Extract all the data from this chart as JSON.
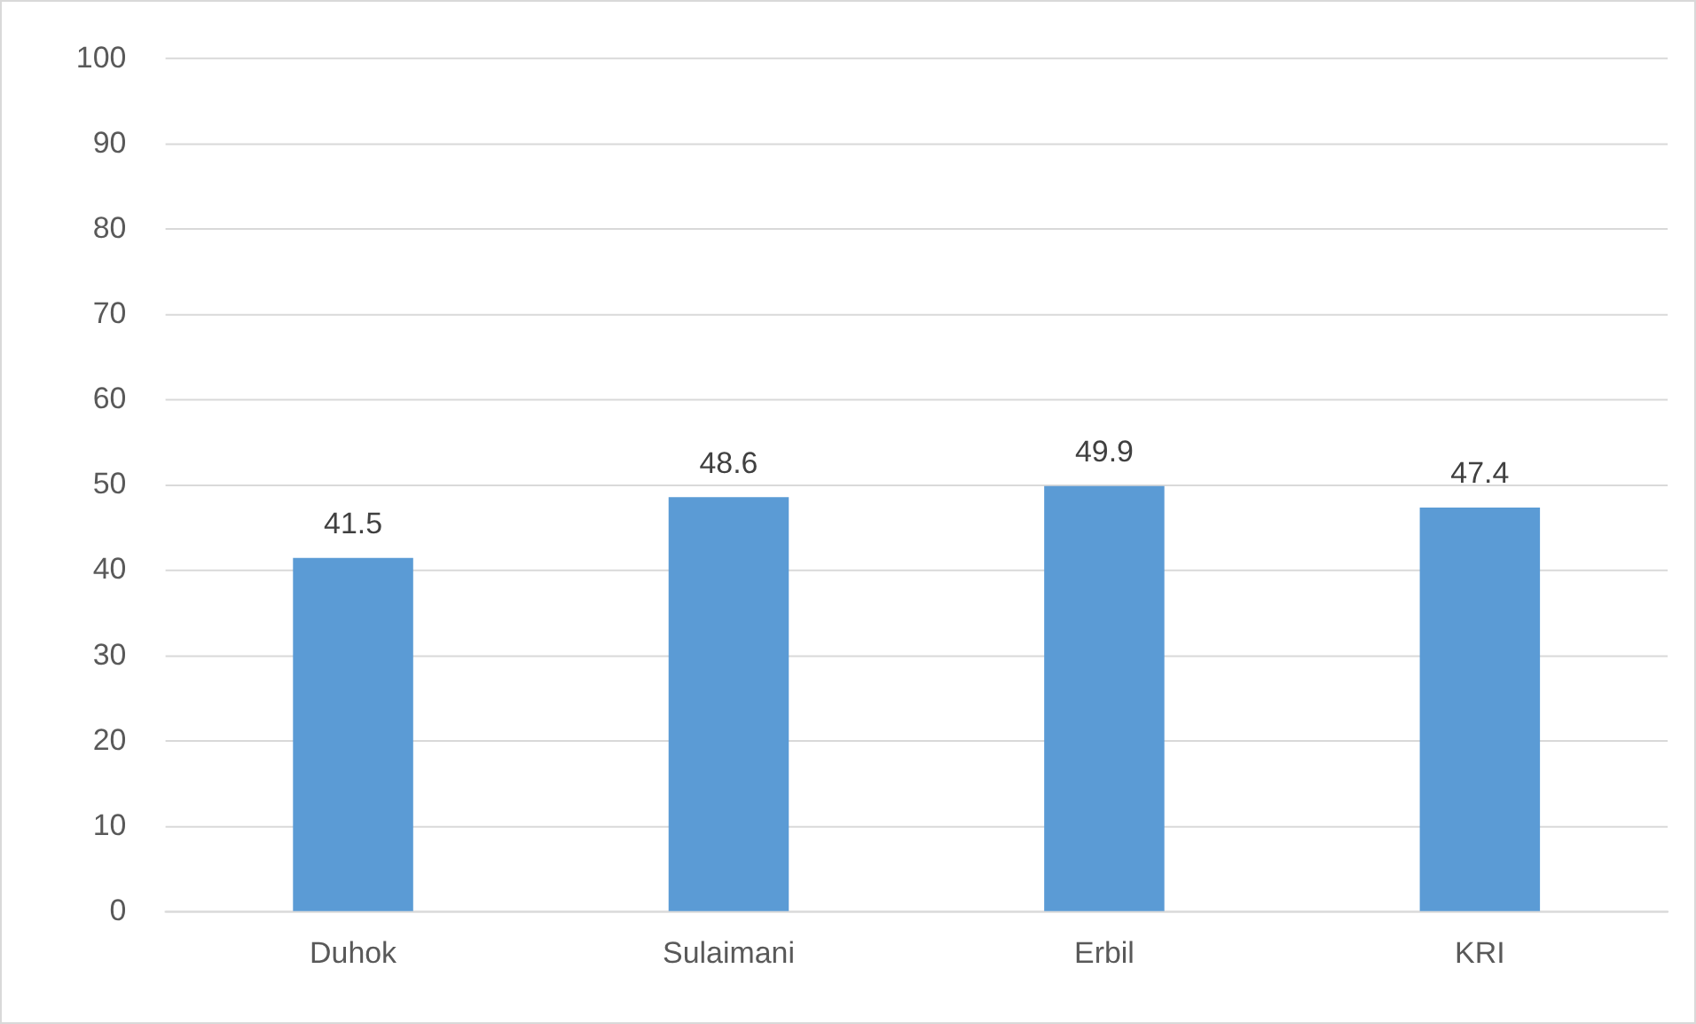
{
  "chart_data": {
    "type": "bar",
    "categories": [
      "Duhok",
      "Sulaimani",
      "Erbil",
      "KRI"
    ],
    "values": [
      41.5,
      48.6,
      49.9,
      47.4
    ],
    "color": "#5b9bd5",
    "ylim": [
      0,
      100
    ],
    "yticks": [
      0,
      10,
      20,
      30,
      40,
      50,
      60,
      70,
      80,
      90,
      100
    ],
    "grid": "y",
    "data_labels": true
  }
}
